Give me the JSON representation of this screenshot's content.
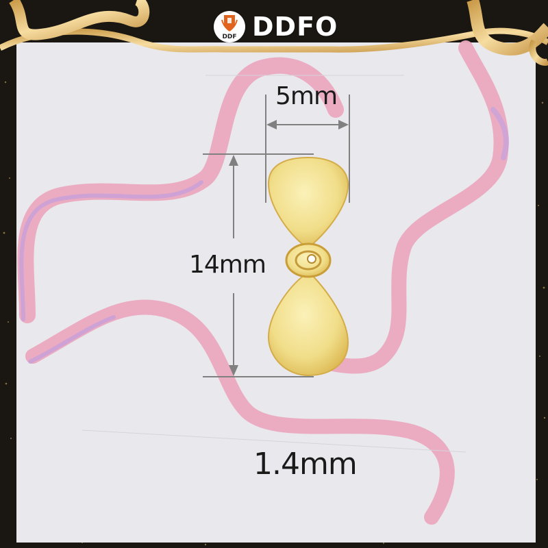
{
  "brand": {
    "name": "DDFO",
    "badge_text": "DDF"
  },
  "dimensions": {
    "width": "5mm",
    "height": "14mm",
    "thickness": "1.4mm"
  },
  "colors": {
    "panel": "#e9e8ec",
    "frame": "#1a1712",
    "ribbon_gold": "#e6c27a",
    "ribbon_pink": "#eba9c0",
    "propeller_gold": "#f0dc86",
    "measure_line": "#808080",
    "brand_orange": "#e0631e"
  }
}
